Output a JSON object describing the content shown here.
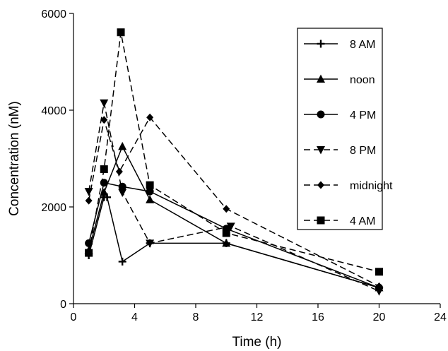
{
  "chart_data": {
    "type": "line",
    "title": "",
    "xlabel": "Time (h)",
    "ylabel": "Concentration (nM)",
    "xlim": [
      0,
      24
    ],
    "ylim": [
      0,
      6000
    ],
    "xticks": [
      "0",
      "4",
      "8",
      "12",
      "16",
      "20",
      "24"
    ],
    "yticks": [
      "0",
      "2000",
      "4000",
      "6000"
    ],
    "grid": false,
    "legend_placement": "top-right",
    "series": [
      {
        "name": "8 AM",
        "marker": "plus",
        "dash": "solid",
        "color": "#000000",
        "x": [
          1,
          2,
          2.2,
          3.2,
          5,
          10,
          20
        ],
        "y": [
          1000,
          2200,
          2200,
          870,
          1250,
          1250,
          330
        ]
      },
      {
        "name": "noon",
        "marker": "triangle-up",
        "dash": "solid",
        "color": "#000000",
        "x": [
          1,
          2,
          3.2,
          5,
          10,
          20
        ],
        "y": [
          1100,
          2300,
          3250,
          2150,
          1250,
          330
        ]
      },
      {
        "name": "4 PM",
        "marker": "circle",
        "dash": "solid",
        "color": "#000000",
        "x": [
          1,
          2,
          3.2,
          5,
          10,
          20
        ],
        "y": [
          1250,
          2500,
          2420,
          2320,
          1550,
          330
        ]
      },
      {
        "name": "8 PM",
        "marker": "triangle-down",
        "dash": "dashed",
        "color": "#000000",
        "x": [
          1,
          2,
          3.2,
          5,
          10.3,
          20
        ],
        "y": [
          2320,
          4150,
          2300,
          1250,
          1600,
          260
        ]
      },
      {
        "name": "midnight",
        "marker": "diamond",
        "dash": "dashed",
        "color": "#000000",
        "x": [
          1,
          2,
          3,
          5,
          10,
          20
        ],
        "y": [
          2130,
          3800,
          2730,
          3850,
          1960,
          360
        ]
      },
      {
        "name": "4 AM",
        "marker": "square",
        "dash": "dashed",
        "color": "#000000",
        "x": [
          1,
          2,
          3.1,
          5,
          10,
          20
        ],
        "y": [
          1050,
          2780,
          5610,
          2450,
          1460,
          660
        ]
      }
    ]
  }
}
